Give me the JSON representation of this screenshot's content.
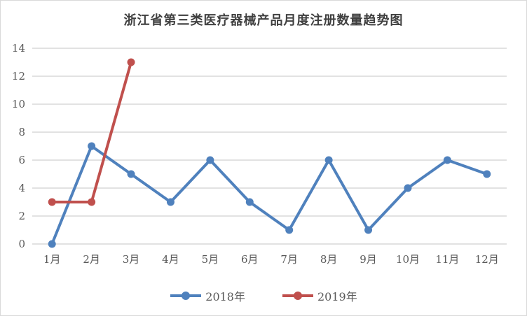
{
  "title": "浙江省第三类医疗器械产品月度注册数量趋势图",
  "chart_data": {
    "type": "line",
    "categories": [
      "1月",
      "2月",
      "3月",
      "4月",
      "5月",
      "6月",
      "7月",
      "8月",
      "9月",
      "10月",
      "11月",
      "12月"
    ],
    "series": [
      {
        "name": "2018年",
        "color": "#4F81BD",
        "values": [
          0,
          7,
          5,
          3,
          6,
          3,
          1,
          6,
          1,
          4,
          6,
          5
        ]
      },
      {
        "name": "2019年",
        "color": "#C0504D",
        "values": [
          3,
          3,
          13
        ]
      }
    ],
    "title": "浙江省第三类医疗器械产品月度注册数量趋势图",
    "xlabel": "",
    "ylabel": "",
    "ylim": [
      0,
      14
    ],
    "ytick_step": 2,
    "grid": true,
    "legend_position": "bottom"
  },
  "colors": {
    "grid": "#D9D9D9",
    "axis_text": "#595959",
    "title_text": "#404040",
    "frame_border": "#D9D9D9",
    "background": "#FFFFFF"
  }
}
